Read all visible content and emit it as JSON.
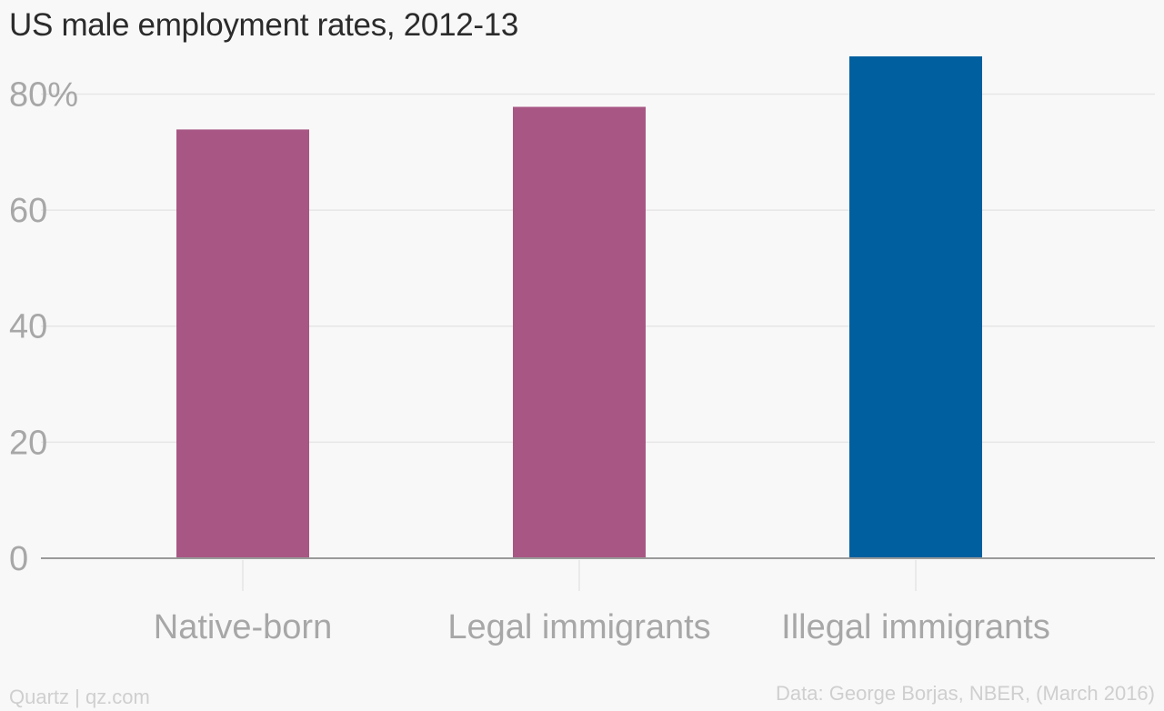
{
  "chart_data": {
    "type": "bar",
    "title": "US male employment rates, 2012-13",
    "categories": [
      "Native-born",
      "Legal immigrants",
      "Illegal immigrants"
    ],
    "values": [
      73.9,
      77.8,
      86.5
    ],
    "ylim": [
      0,
      86.5
    ],
    "yticks": [
      0,
      20,
      40,
      60,
      80
    ],
    "ytick_labels": [
      "0",
      "20",
      "40",
      "60",
      "80%"
    ],
    "xlabel": "",
    "ylabel": "",
    "grid": true,
    "bar_colors": [
      "#a85784",
      "#a85784",
      "#005f9e"
    ]
  },
  "colors": {
    "background": "#f8f8f8",
    "grid": "#e6e6e6",
    "axis": "#9a9a9a",
    "text_muted": "#a7a7a7",
    "footer_text": "#cfcfcf"
  },
  "footer": {
    "brand": "Quartz | qz.com",
    "source": "Data: George Borjas, NBER, (March 2016)"
  }
}
